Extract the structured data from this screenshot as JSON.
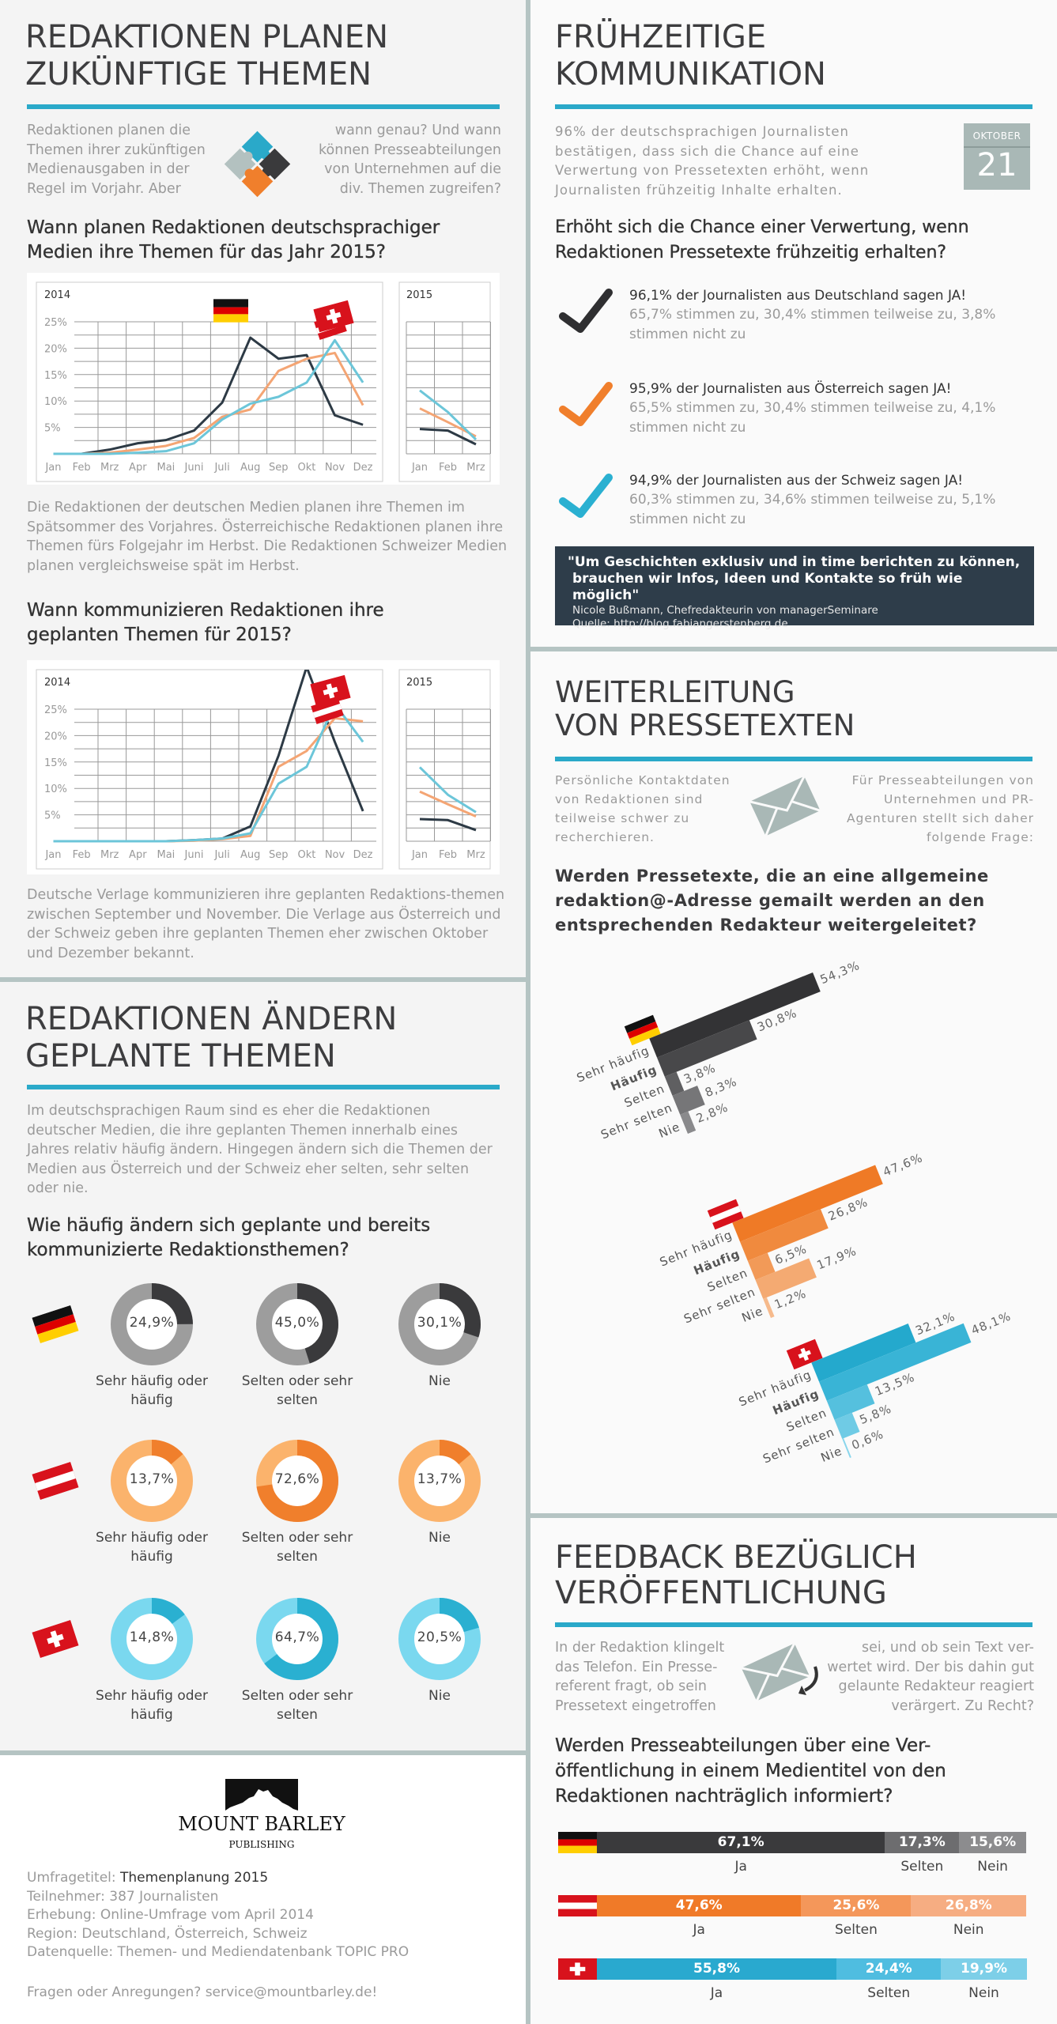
{
  "colors": {
    "accent": "#2aa9c9",
    "de": "#3a3a3c",
    "at": "#f07f2c",
    "ch": "#2ab0d1",
    "divider": "#b5c4c3"
  },
  "planning": {
    "title_line1": "REDAKTIONEN PLANEN",
    "title_line2": "ZUKÜNFTIGE THEMEN",
    "intro_left": "Redaktionen planen die Themen ihrer zukünftigen Medienausgaben in der Regel im Vorjahr. Aber",
    "intro_right": "wann genau? Und wann können Presseabteilungen von Unternehmen auf die div. Themen zugreifen?",
    "icon": "puzzle-icon",
    "text1": "Die Redaktionen der deutschen Medien planen ihre Themen im Spätsommer des Vorjahres. Österreichische Redaktionen planen ihre Themen fürs Folgejahr im Herbst. Die Redaktionen Schweizer Medien planen vergleichsweise spät im Herbst.",
    "text2": "Deutsche Verlage kommunizieren ihre geplanten Redaktions-themen zwischen September und November. Die Verlage aus Österreich und der Schweiz geben ihre geplanten Themen eher zwischen Oktober und Dezember bekannt."
  },
  "early": {
    "title_line1": "FRÜHZEITIGE",
    "title_line2": "KOMMUNIKATION",
    "intro": "96% der deutschsprachigen Journalisten bestätigen, dass sich die Chance auf eine Verwertung von Pressetexten erhöht, wenn Journalisten frühzeitig Inhalte erhalten.",
    "calendar": {
      "month": "OKTOBER",
      "day": "21"
    },
    "question": "Erhöht sich die Chance einer Verwertung, wenn Redaktionen Pressetexte frühzeitig erhalten?",
    "items": [
      {
        "main": "96,1% der Journalisten aus Deutschland sagen JA!",
        "sub": "65,7% stimmen zu, 30,4% stimmen teilweise zu, 3,8% stimmen nicht zu",
        "color": "#2f2f31"
      },
      {
        "main": "95,9% der Journalisten aus Österreich sagen JA!",
        "sub": "65,5% stimmen zu, 30,4% stimmen teilweise zu, 4,1% stimmen nicht zu",
        "color": "#f07f2c"
      },
      {
        "main": "94,9% der Journalisten aus der Schweiz sagen JA!",
        "sub": "60,3% stimmen zu, 34,6% stimmen teilweise zu, 5,1% stimmen nicht zu",
        "color": "#2ab0d1"
      }
    ],
    "quote": {
      "line1": "\"Um Geschichten exklusiv und in time berichten zu können,",
      "line2": "brauchen wir Infos, Ideen und Kontakte so früh wie möglich\"",
      "author": "Nicole Bußmann, Chefredakteurin von managerSeminare",
      "source": "Quelle: http://blog.fabiangerstenberg.de"
    }
  },
  "change": {
    "title_line1": "REDAKTIONEN ÄNDERN",
    "title_line2": "GEPLANTE THEMEN",
    "body": "Im deutschsprachigen Raum sind es eher die Redaktionen deutscher Medien, die ihre geplanten Themen innerhalb eines Jahres relativ häufig ändern. Hingegen ändern sich die Themen der Medien aus Österreich und der Schweiz eher selten, sehr selten oder nie."
  },
  "forward": {
    "title_line1": "WEITERLEITUNG",
    "title_line2": "VON PRESSETEXTEN",
    "intro_left": "Persönliche Kontaktdaten von Redaktionen sind teilweise schwer zu recherchieren.",
    "intro_right": "Für Presseabteilungen von Unternehmen und PR-Agenturen stellt sich daher folgende Frage:",
    "icon": "envelope-icon"
  },
  "feedback": {
    "title_line1": "FEEDBACK BEZÜGLICH",
    "title_line2": "VERÖFFENTLICHUNG",
    "intro_left": "In der Redaktion klingelt das Telefon. Ein Presse-referent fragt, ob sein Pressetext eingetroffen",
    "intro_right": "sei, und ob sein Text ver-wertet wird. Der bis dahin gut gelaunte Redakteur reagiert verärgert. Zu Recht?",
    "icon": "envelope-return-icon"
  },
  "footer": {
    "logo_name": "MOUNT BARLEY",
    "logo_sub": "PUBLISHING",
    "survey_label": "Umfragetitel: ",
    "survey_value": "Themenplanung 2015",
    "participants": "Teilnehmer: 387 Journalisten",
    "method": "Erhebung: Online-Umfrage vom April 2014",
    "region": "Region: Deutschland, Österreich, Schweiz",
    "source": "Datenquelle: Themen- und Mediendatenbank TOPIC PRO",
    "contact": "Fragen oder Anregungen? service@mountbarley.de!"
  },
  "chart_data": [
    {
      "type": "line",
      "title": "Wann planen Redaktionen deutschsprachiger Medien ihre Themen für das Jahr 2015?",
      "ylim": [
        0,
        25
      ],
      "yticks": [
        "5%",
        "10%",
        "15%",
        "20%",
        "25%"
      ],
      "grid": true,
      "panels": [
        {
          "label": "2014",
          "x": [
            "Jan",
            "Feb",
            "Mrz",
            "Apr",
            "Mai",
            "Juni",
            "Juli",
            "Aug",
            "Sep",
            "Okt",
            "Nov",
            "Dez"
          ],
          "series": [
            {
              "flag": "de",
              "color": "#2d3a45",
              "values": [
                0,
                0,
                0.8,
                2,
                2.6,
                4.4,
                9.7,
                22,
                18,
                18.7,
                7.3,
                5.5
              ]
            },
            {
              "flag": "at",
              "color": "#f4a574",
              "values": [
                0,
                0,
                0.2,
                0.8,
                1.5,
                3,
                7,
                8.4,
                15.7,
                18,
                19.1,
                9.2
              ]
            },
            {
              "flag": "ch",
              "color": "#6cc6d9",
              "values": [
                0,
                0,
                0,
                0.2,
                0.5,
                2,
                6.5,
                9.5,
                10.8,
                13.5,
                21.5,
                13.5
              ]
            }
          ]
        },
        {
          "label": "2015",
          "x": [
            "Jan",
            "Feb",
            "Mrz"
          ],
          "series": [
            {
              "flag": "de",
              "color": "#2d3a45",
              "values": [
                4.7,
                4.4,
                1.8
              ]
            },
            {
              "flag": "at",
              "color": "#f4a574",
              "values": [
                8.6,
                6,
                3.3
              ]
            },
            {
              "flag": "ch",
              "color": "#6cc6d9",
              "values": [
                12,
                7.9,
                2.7
              ]
            }
          ]
        }
      ]
    },
    {
      "type": "line",
      "title": "Wann kommunizieren Redaktionen ihre geplanten Themen für 2015?",
      "ylim": [
        0,
        25
      ],
      "yticks": [
        "5%",
        "10%",
        "15%",
        "20%",
        "25%"
      ],
      "grid": true,
      "panels": [
        {
          "label": "2014",
          "x": [
            "Jan",
            "Feb",
            "Mrz",
            "Apr",
            "Mai",
            "Juni",
            "Juli",
            "Aug",
            "Sep",
            "Okt",
            "Nov",
            "Dez"
          ],
          "series": [
            {
              "flag": "de",
              "color": "#2d3a45",
              "values": [
                0,
                0,
                0,
                0,
                0,
                0.2,
                0.5,
                2.8,
                16.2,
                33,
                18.8,
                5.7
              ]
            },
            {
              "flag": "at",
              "color": "#f4a574",
              "values": [
                0,
                0,
                0,
                0,
                0,
                0.1,
                0.4,
                1,
                14.1,
                17.1,
                23.3,
                22.7
              ]
            },
            {
              "flag": "ch",
              "color": "#6cc6d9",
              "values": [
                0,
                0,
                0,
                0,
                0,
                0.2,
                0.5,
                1.5,
                10.9,
                14.1,
                26,
                18.8
              ]
            }
          ]
        },
        {
          "label": "2015",
          "x": [
            "Jan",
            "Feb",
            "Mrz"
          ],
          "series": [
            {
              "flag": "de",
              "color": "#2d3a45",
              "values": [
                4.2,
                4,
                2.1
              ]
            },
            {
              "flag": "at",
              "color": "#f4a574",
              "values": [
                9.4,
                7,
                4.7
              ]
            },
            {
              "flag": "ch",
              "color": "#6cc6d9",
              "values": [
                14,
                8.8,
                5.5
              ]
            }
          ]
        }
      ]
    },
    {
      "type": "pie",
      "title": "Wie häufig ändern sich geplante und bereits kommunizierte Redaktionsthemen?",
      "categories": [
        "Sehr häufig oder häufig",
        "Selten oder sehr selten",
        "Nie"
      ],
      "rows": [
        {
          "flag": "de",
          "fill": "#3a3a3c",
          "track": "#9d9d9d",
          "values": [
            24.9,
            45.0,
            30.1
          ],
          "labels": [
            "24,9%",
            "45,0%",
            "30,1%"
          ]
        },
        {
          "flag": "at",
          "fill": "#f07f2c",
          "track": "#fbb36c",
          "values": [
            13.7,
            72.6,
            13.7
          ],
          "labels": [
            "13,7%",
            "72,6%",
            "13,7%"
          ]
        },
        {
          "flag": "ch",
          "fill": "#2ab0d1",
          "track": "#7ad8ef",
          "values": [
            14.8,
            64.7,
            20.5
          ],
          "labels": [
            "14,8%",
            "64,7%",
            "20,5%"
          ]
        }
      ]
    },
    {
      "type": "bar",
      "title": "Werden Pressetexte, die an eine allgemeine redaktion@-Adresse gemailt werden an den entsprechenden Redakteur weitergeleitet?",
      "categories": [
        "Sehr häufig",
        "Häufig",
        "Selten",
        "Sehr selten",
        "Nie"
      ],
      "series": [
        {
          "flag": "de",
          "values": [
            54.3,
            30.8,
            3.8,
            8.3,
            2.8
          ],
          "labels": [
            "54,3%",
            "30,8%",
            "3,8%",
            "8,3%",
            "2,8%"
          ],
          "colors": [
            "#333335",
            "#48484a",
            "#5f5f61",
            "#767678",
            "#8a8a8c"
          ]
        },
        {
          "flag": "at",
          "values": [
            47.6,
            26.8,
            6.5,
            17.9,
            1.2
          ],
          "labels": [
            "47,6%",
            "26,8%",
            "6,5%",
            "17,9%",
            "1,2%"
          ],
          "colors": [
            "#ef7a26",
            "#f08a3e",
            "#f29a58",
            "#f4aa72",
            "#f6ba8c"
          ]
        },
        {
          "flag": "ch",
          "values": [
            32.1,
            48.1,
            13.5,
            5.8,
            0.6
          ],
          "labels": [
            "32,1%",
            "48,1%",
            "13,5%",
            "5,8%",
            "0,6%"
          ],
          "colors": [
            "#24a9cd",
            "#39b4d6",
            "#55c0de",
            "#6fcbe5",
            "#8ad6ec"
          ]
        }
      ]
    },
    {
      "type": "bar",
      "stacked": true,
      "title": "Werden Presseabteilungen über eine Ver-öffentlichung in einem Medientitel von den Redaktionen nachträglich informiert?",
      "categories": [
        "Ja",
        "Selten",
        "Nein"
      ],
      "series": [
        {
          "flag": "de",
          "values": [
            67.1,
            17.3,
            15.6
          ],
          "labels": [
            "67,1%",
            "17,3%",
            "15,6%"
          ],
          "colors": [
            "#3a3a3c",
            "#6d6d6f",
            "#8c8c8e"
          ]
        },
        {
          "flag": "at",
          "values": [
            47.6,
            25.6,
            26.8
          ],
          "labels": [
            "47,6%",
            "25,6%",
            "26,8%"
          ],
          "colors": [
            "#f07a28",
            "#f4975a",
            "#f6ad82"
          ]
        },
        {
          "flag": "ch",
          "values": [
            55.8,
            24.4,
            19.9
          ],
          "labels": [
            "55,8%",
            "24,4%",
            "19,9%"
          ],
          "colors": [
            "#29a9cf",
            "#4fbde0",
            "#7dcfe8"
          ]
        }
      ]
    }
  ]
}
